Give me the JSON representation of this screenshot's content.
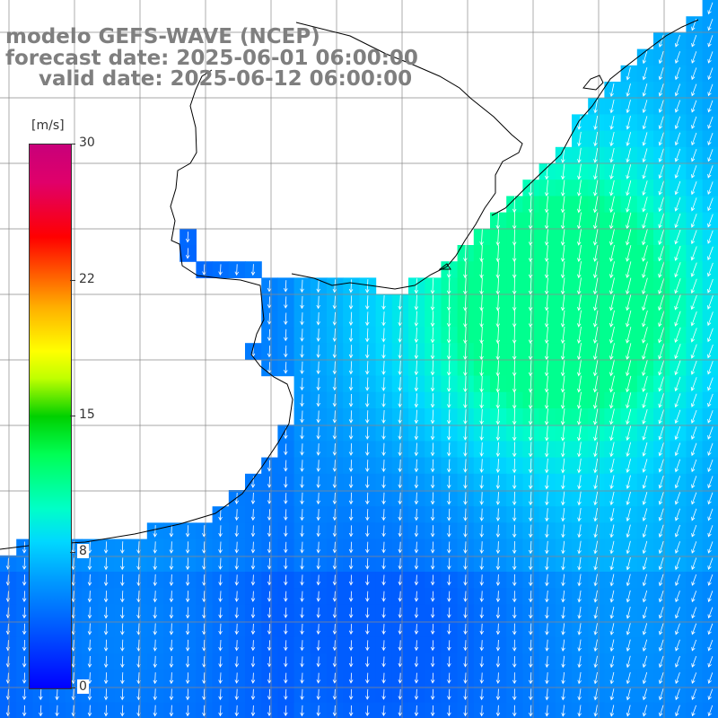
{
  "title": {
    "line1": "modelo GEFS-WAVE (NCEP)",
    "line2": "forecast date: 2025-06-01 06:00:00",
    "line3": "valid date: 2025-06-12 06:00:00"
  },
  "colorbar": {
    "unit": "[m/s]",
    "min": 0,
    "max": 30,
    "ticks": [
      {
        "label": "30",
        "value": 30
      },
      {
        "label": "22",
        "value": 22.5
      },
      {
        "label": "15",
        "value": 15
      },
      {
        "label": "8",
        "value": 7.5
      },
      {
        "label": "0",
        "value": 0
      }
    ]
  },
  "map": {
    "wind_direction": "north-to-south (arrows pointing southward, turning south-westward in the east)",
    "ocean_speed_range_ms": [
      4,
      11
    ],
    "max_speed_region": "east-centre of map",
    "land_color": "#ffffff",
    "grid": true
  }
}
